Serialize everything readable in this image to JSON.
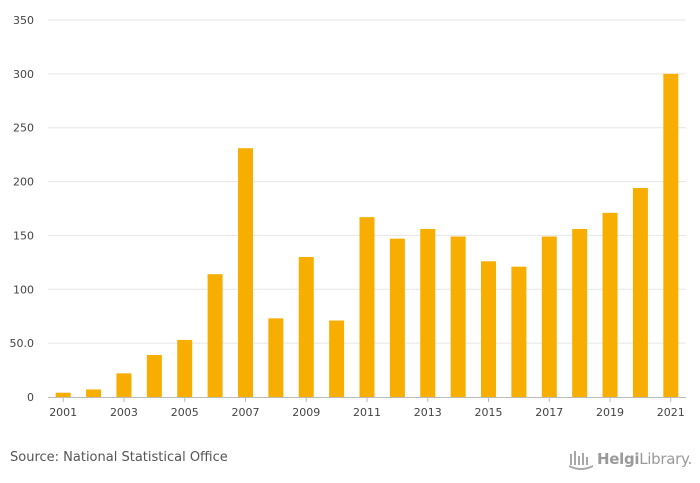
{
  "chart_data": {
    "type": "bar",
    "title": "",
    "xlabel": "",
    "ylabel": "",
    "color": "#F7AE00",
    "grid": true,
    "ylim": [
      0,
      350
    ],
    "yticks": [
      {
        "value": 0,
        "label": "0"
      },
      {
        "value": 50,
        "label": "50.0"
      },
      {
        "value": 100,
        "label": "100"
      },
      {
        "value": 150,
        "label": "150"
      },
      {
        "value": 200,
        "label": "200"
      },
      {
        "value": 250,
        "label": "250"
      },
      {
        "value": 300,
        "label": "300"
      },
      {
        "value": 350,
        "label": "350"
      }
    ],
    "categories": [
      "2001",
      "2002",
      "2003",
      "2004",
      "2005",
      "2006",
      "2007",
      "2008",
      "2009",
      "2010",
      "2011",
      "2012",
      "2013",
      "2014",
      "2015",
      "2016",
      "2017",
      "2018",
      "2019",
      "2020",
      "2021"
    ],
    "xtick_labels": [
      "2001",
      "2003",
      "2005",
      "2007",
      "2009",
      "2011",
      "2013",
      "2015",
      "2017",
      "2019",
      "2021"
    ],
    "values": [
      4,
      7,
      22,
      39,
      53,
      114,
      231,
      73,
      130,
      71,
      167,
      147,
      156,
      149,
      126,
      121,
      149,
      156,
      171,
      194,
      300
    ]
  },
  "footer": {
    "source": "Source: National Statistical Office",
    "logo_bold": "Helgi",
    "logo_light": "Library.",
    "logo_icon": "helgi-library-logo-icon"
  }
}
